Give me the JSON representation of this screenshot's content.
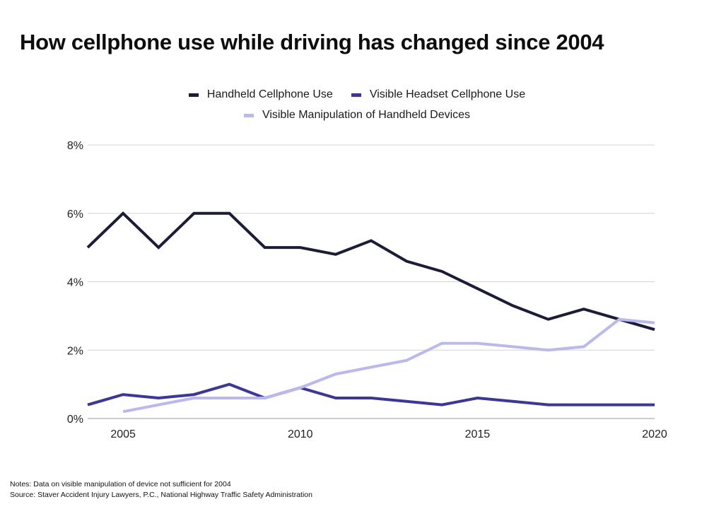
{
  "chart_data": {
    "type": "line",
    "title": "How cellphone use while driving has changed since 2004",
    "xlabel": "",
    "ylabel": "",
    "xlim": [
      2004,
      2020
    ],
    "ylim": [
      0,
      8
    ],
    "x": [
      2004,
      2005,
      2006,
      2007,
      2008,
      2009,
      2010,
      2011,
      2012,
      2013,
      2014,
      2015,
      2016,
      2017,
      2018,
      2019,
      2020
    ],
    "x_ticks": [
      2005,
      2010,
      2015,
      2020
    ],
    "x_tick_labels": [
      "2005",
      "2010",
      "2015",
      "2020"
    ],
    "y_ticks": [
      0,
      2,
      4,
      6,
      8
    ],
    "y_tick_labels": [
      "0%",
      "2%",
      "4%",
      "6%",
      "8%"
    ],
    "grid": true,
    "legend_position": "top-center",
    "series": [
      {
        "name": "Handheld Cellphone Use",
        "color": "#1b1b3a",
        "values": [
          5.0,
          6.0,
          5.0,
          6.0,
          6.0,
          5.0,
          5.0,
          4.8,
          5.2,
          4.6,
          4.3,
          3.8,
          3.3,
          2.9,
          3.2,
          2.9,
          2.6
        ]
      },
      {
        "name": "Visible Headset Cellphone Use",
        "color": "#3a35a0",
        "values": [
          0.4,
          0.7,
          0.6,
          0.7,
          1.0,
          0.6,
          0.9,
          0.6,
          0.6,
          0.5,
          0.4,
          0.6,
          0.5,
          0.4,
          0.4,
          0.4,
          0.4
        ]
      },
      {
        "name": "Visible Manipulation of Handheld Devices",
        "color": "#b9b8f2",
        "values": [
          null,
          0.2,
          0.4,
          0.6,
          0.6,
          0.6,
          0.9,
          1.3,
          1.5,
          1.7,
          2.2,
          2.2,
          2.1,
          2.0,
          2.1,
          2.9,
          2.8
        ]
      }
    ]
  },
  "notes": {
    "line1": "Notes: Data on visible manipulation of device not sufficient for 2004",
    "line2": "Source: Staver Accident Injury Lawyers, P.C., National Highway Traffic Safety Administration"
  }
}
